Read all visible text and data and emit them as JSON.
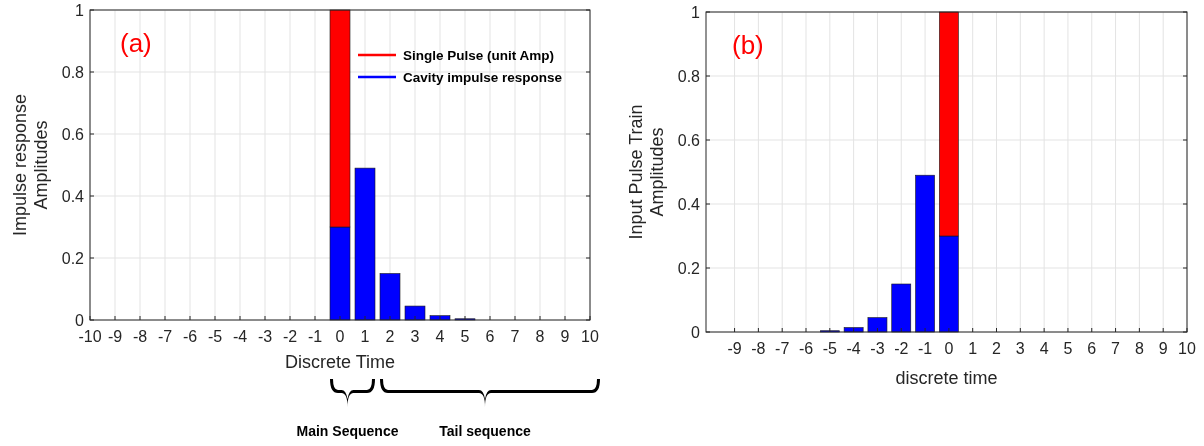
{
  "chart_data": [
    {
      "type": "bar",
      "xlabel": "Discrete Time",
      "ylabel": "Impulse response\nAmplitudes",
      "annotations": [
        "(a)",
        "Main Sequence",
        "Tail sequence"
      ],
      "xlim": [
        -10,
        10
      ],
      "xticks": [
        -10,
        -9,
        -8,
        -7,
        -6,
        -5,
        -4,
        -3,
        -2,
        -1,
        0,
        1,
        2,
        3,
        4,
        5,
        6,
        7,
        8,
        9,
        10
      ],
      "ylim": [
        0,
        1
      ],
      "yticks": [
        0,
        0.2,
        0.4,
        0.6,
        0.8,
        1
      ],
      "grid": true,
      "legend": "top right",
      "stacked": true,
      "x": [
        0,
        1,
        2,
        3,
        4,
        5
      ],
      "series": [
        {
          "name": "Cavity impulse response",
          "color": "#0000ff",
          "values": [
            0.3,
            0.49,
            0.15,
            0.045,
            0.014,
            0.004
          ]
        },
        {
          "name": "Single Pulse (unit Amp)",
          "color": "#ff0000",
          "values": [
            0.7,
            null,
            null,
            null,
            null,
            null
          ]
        }
      ]
    },
    {
      "type": "bar",
      "xlabel": "discrete time",
      "ylabel": "Input Pulse Train\nAmplitudes",
      "annotations": [
        "(b)"
      ],
      "xlim": [
        -10.2,
        10
      ],
      "xticks": [
        -9,
        -8,
        -7,
        -6,
        -5,
        -4,
        -3,
        -2,
        -1,
        0,
        1,
        2,
        3,
        4,
        5,
        6,
        7,
        8,
        9,
        10
      ],
      "ylim": [
        0,
        1
      ],
      "yticks": [
        0,
        0.2,
        0.4,
        0.6,
        0.8,
        1
      ],
      "grid": true,
      "stacked": true,
      "x": [
        -5,
        -4,
        -3,
        -2,
        -1,
        0
      ],
      "series": [
        {
          "color": "#0000ff",
          "values": [
            0.004,
            0.014,
            0.045,
            0.15,
            0.49,
            0.3
          ]
        },
        {
          "color": "#ff0000",
          "values": [
            null,
            null,
            null,
            null,
            null,
            0.7
          ]
        }
      ]
    }
  ]
}
